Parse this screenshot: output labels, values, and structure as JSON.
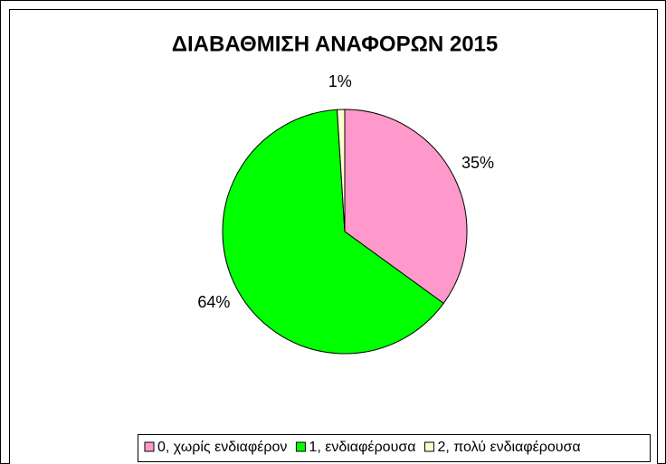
{
  "chart_data": {
    "type": "pie",
    "title": "ΔΙΑΒΑΘΜΙΣΗ ΑΝΑΦΟΡΩΝ 2015",
    "categories": [
      "0, χωρίς ενδιαφέρον",
      "1, ενδιαφέρουσα",
      "2, πολύ ενδιαφέρουσα"
    ],
    "values": [
      35,
      64,
      1
    ],
    "value_labels": [
      "35%",
      "64%",
      "1%"
    ],
    "colors": [
      "#ff99cc",
      "#00ff00",
      "#ffffcc"
    ],
    "legend": "bottom"
  }
}
